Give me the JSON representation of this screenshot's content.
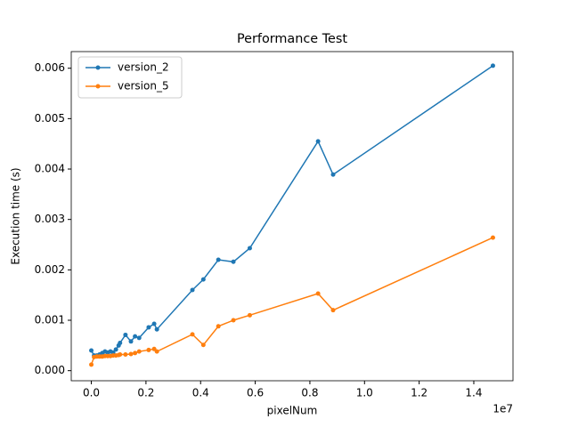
{
  "chart_data": {
    "type": "line",
    "title": "Performance Test",
    "x_label": "pixelNum",
    "y_label": "Execution time (s)",
    "x_offset_label": "1e7",
    "x": [
      0,
      100000,
      200000,
      300000,
      400000,
      500000,
      600000,
      700000,
      800000,
      900000,
      1000000,
      1050000,
      1250000,
      1450000,
      1600000,
      1750000,
      2100000,
      2300000,
      2400000,
      3700000,
      4100000,
      4650000,
      5200000,
      5800000,
      8300000,
      8850000,
      14700000
    ],
    "series": [
      {
        "name": "version_2",
        "color": "#1f77b4",
        "values": [
          0.0004,
          0.0003,
          0.0003,
          0.00032,
          0.00035,
          0.00038,
          0.00036,
          0.00038,
          0.00036,
          0.00042,
          0.0005,
          0.00055,
          0.00071,
          0.00058,
          0.00068,
          0.00065,
          0.00086,
          0.00093,
          0.00082,
          0.0016,
          0.00181,
          0.0022,
          0.00216,
          0.00243,
          0.00455,
          0.00389,
          0.00605
        ]
      },
      {
        "name": "version_5",
        "color": "#ff7f0e",
        "values": [
          0.00012,
          0.00027,
          0.00028,
          0.00028,
          0.00028,
          0.00029,
          0.00029,
          0.00029,
          0.0003,
          0.0003,
          0.00031,
          0.00032,
          0.00032,
          0.00033,
          0.00035,
          0.00038,
          0.00041,
          0.00043,
          0.00038,
          0.00072,
          0.00051,
          0.00088,
          0.001,
          0.0011,
          0.00153,
          0.0012,
          0.00264
        ]
      }
    ],
    "xlim": [
      -735000,
      15435000
    ],
    "ylim": [
      -0.0002,
      0.00633
    ],
    "xticks": [
      {
        "value": 0,
        "label": "0.0"
      },
      {
        "value": 2000000,
        "label": "0.2"
      },
      {
        "value": 4000000,
        "label": "0.4"
      },
      {
        "value": 6000000,
        "label": "0.6"
      },
      {
        "value": 8000000,
        "label": "0.8"
      },
      {
        "value": 10000000,
        "label": "1.0"
      },
      {
        "value": 12000000,
        "label": "1.2"
      },
      {
        "value": 14000000,
        "label": "1.4"
      }
    ],
    "yticks": [
      {
        "value": 0,
        "label": "0.000"
      },
      {
        "value": 0.001,
        "label": "0.001"
      },
      {
        "value": 0.002,
        "label": "0.002"
      },
      {
        "value": 0.003,
        "label": "0.003"
      },
      {
        "value": 0.004,
        "label": "0.004"
      },
      {
        "value": 0.005,
        "label": "0.005"
      },
      {
        "value": 0.006,
        "label": "0.006"
      }
    ],
    "legend": "upper left",
    "grid": false
  }
}
